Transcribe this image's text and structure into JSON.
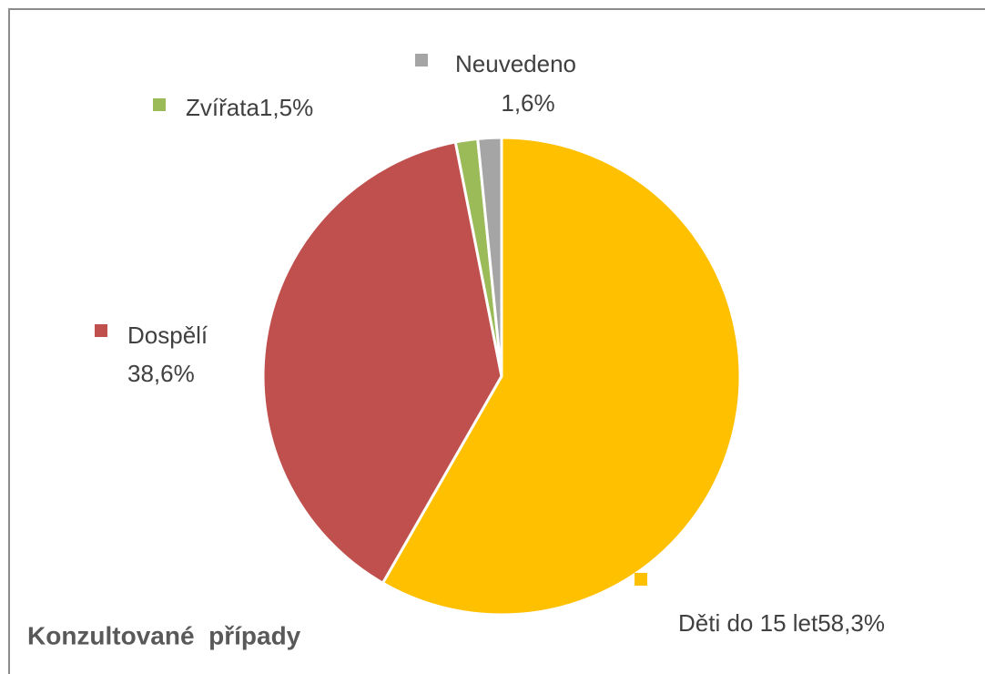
{
  "chart_data": {
    "type": "pie",
    "title": "Konzultované  případy",
    "categories": [
      "Děti do 15 let",
      "Dospělí",
      "Zvířata",
      "Neuvedeno"
    ],
    "values": [
      58.3,
      38.6,
      1.5,
      1.6
    ],
    "value_labels": [
      "58,3%",
      "38,6%",
      "1,5%",
      "1,6%"
    ],
    "colors": [
      "#FFC000",
      "#C0504D",
      "#9BBB59",
      "#A5A5A5"
    ]
  }
}
